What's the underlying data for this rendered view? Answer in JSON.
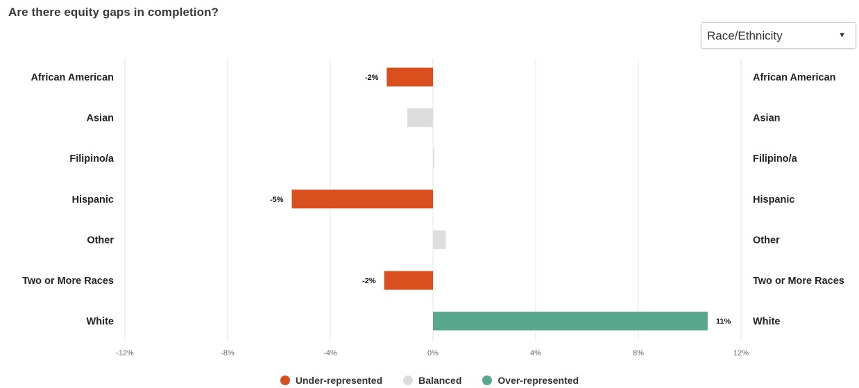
{
  "title": "Are there equity gaps in completion?",
  "dropdown": {
    "selected": "Race/Ethnicity"
  },
  "colors": {
    "under": "#d9501e",
    "balanced": "#dddddd",
    "over": "#59a88e",
    "grid": "#e6e6e6",
    "tick": "#666666",
    "label": "#222222"
  },
  "legend": [
    {
      "label": "Under-represented",
      "color": "#d9501e"
    },
    {
      "label": "Balanced",
      "color": "#dddddd"
    },
    {
      "label": "Over-represented",
      "color": "#59a88e"
    }
  ],
  "chart_data": {
    "type": "bar",
    "orientation": "horizontal",
    "categories": [
      "African American",
      "Asian",
      "Filipino/a",
      "Hispanic",
      "Other",
      "Two or More Races",
      "White"
    ],
    "values": [
      -1.8,
      -1.0,
      0.05,
      -5.5,
      0.5,
      -1.9,
      10.7
    ],
    "status": [
      "under",
      "balanced",
      "balanced",
      "under",
      "balanced",
      "under",
      "over"
    ],
    "data_labels": [
      "-2%",
      "",
      "",
      "-5%",
      "",
      "-2%",
      "11%"
    ],
    "xlim": [
      -12,
      12
    ],
    "x_ticks": [
      -12,
      -8,
      -4,
      0,
      4,
      8,
      12
    ],
    "x_tick_labels": [
      "-12%",
      "-8%",
      "-4%",
      "0%",
      "4%",
      "8%",
      "12%"
    ],
    "grid": true,
    "legend_position": "bottom"
  }
}
